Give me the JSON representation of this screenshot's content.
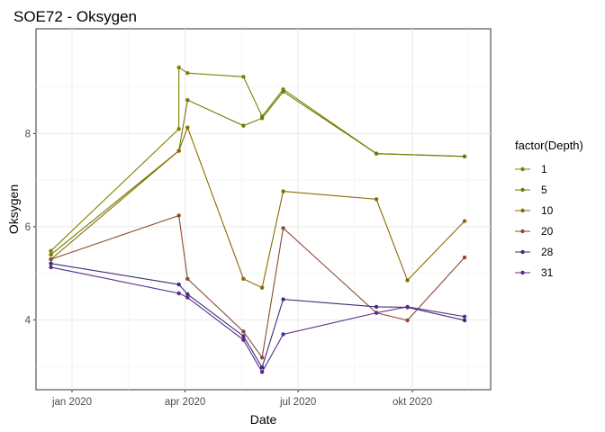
{
  "chart_data": {
    "type": "line",
    "title": "SOE72  -  Oksygen",
    "xlabel": "Date",
    "ylabel": "Oksygen",
    "x_ticks": [
      {
        "date": "2020-01-01",
        "label": "jan 2020"
      },
      {
        "date": "2020-04-01",
        "label": "apr 2020"
      },
      {
        "date": "2020-07-01",
        "label": "jul 2020"
      },
      {
        "date": "2020-10-01",
        "label": "okt 2020"
      }
    ],
    "y_ticks": [
      4,
      6,
      8
    ],
    "xlim": [
      "2019-12-03",
      "2020-12-03"
    ],
    "ylim": [
      2.5,
      10.25
    ],
    "grid": true,
    "legend": {
      "title": "factor(Depth)",
      "position": "right"
    },
    "series": [
      {
        "name": "1",
        "color": "#7f7f00",
        "points": [
          [
            "2019-12-15",
            5.48
          ],
          [
            "2020-03-27",
            8.1
          ],
          [
            "2020-03-27",
            9.42
          ],
          [
            "2020-04-03",
            9.3
          ],
          [
            "2020-05-18",
            9.22
          ],
          [
            "2020-06-02",
            8.37
          ],
          [
            "2020-06-19",
            8.95
          ],
          [
            "2020-09-02",
            7.57
          ],
          [
            "2020-11-12",
            7.51
          ]
        ]
      },
      {
        "name": "5",
        "color": "#6f7a00",
        "points": [
          [
            "2019-12-15",
            5.4
          ],
          [
            "2020-03-27",
            7.63
          ],
          [
            "2020-04-03",
            8.72
          ],
          [
            "2020-05-18",
            8.17
          ],
          [
            "2020-06-02",
            8.33
          ],
          [
            "2020-06-19",
            8.9
          ],
          [
            "2020-09-02",
            7.57
          ],
          [
            "2020-11-12",
            7.51
          ]
        ]
      },
      {
        "name": "10",
        "color": "#8a6a00",
        "points": [
          [
            "2019-12-15",
            5.3
          ],
          [
            "2020-03-27",
            7.63
          ],
          [
            "2020-04-03",
            8.13
          ],
          [
            "2020-05-18",
            4.88
          ],
          [
            "2020-06-02",
            4.69
          ],
          [
            "2020-06-19",
            6.76
          ],
          [
            "2020-09-02",
            6.59
          ],
          [
            "2020-09-27",
            4.85
          ],
          [
            "2020-11-12",
            6.12
          ]
        ]
      },
      {
        "name": "20",
        "color": "#8b4a2e",
        "points": [
          [
            "2019-12-15",
            5.3
          ],
          [
            "2020-03-27",
            6.24
          ],
          [
            "2020-04-03",
            4.88
          ],
          [
            "2020-05-18",
            3.75
          ],
          [
            "2020-06-02",
            3.19
          ],
          [
            "2020-06-19",
            5.97
          ],
          [
            "2020-09-02",
            4.15
          ],
          [
            "2020-09-27",
            3.99
          ],
          [
            "2020-11-12",
            5.34
          ]
        ]
      },
      {
        "name": "28",
        "color": "#3b2f7c",
        "points": [
          [
            "2019-12-15",
            5.21
          ],
          [
            "2020-03-27",
            4.76
          ],
          [
            "2020-04-03",
            4.55
          ],
          [
            "2020-05-18",
            3.65
          ],
          [
            "2020-06-02",
            2.98
          ],
          [
            "2020-06-19",
            4.44
          ],
          [
            "2020-09-02",
            4.28
          ],
          [
            "2020-09-27",
            4.27
          ],
          [
            "2020-11-12",
            3.99
          ]
        ]
      },
      {
        "name": "31",
        "color": "#5e2a8c",
        "points": [
          [
            "2019-12-15",
            5.13
          ],
          [
            "2020-03-27",
            4.57
          ],
          [
            "2020-04-03",
            4.48
          ],
          [
            "2020-05-18",
            3.57
          ],
          [
            "2020-06-02",
            2.88
          ],
          [
            "2020-06-19",
            3.69
          ],
          [
            "2020-09-02",
            4.15
          ],
          [
            "2020-09-27",
            4.28
          ],
          [
            "2020-11-12",
            4.07
          ]
        ]
      }
    ]
  }
}
